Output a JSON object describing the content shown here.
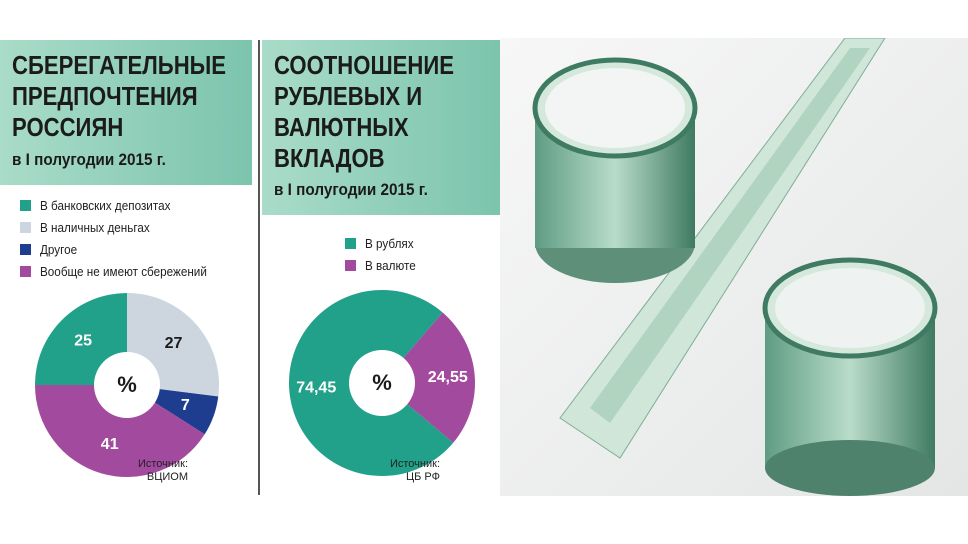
{
  "chart_data": [
    {
      "type": "pie",
      "title": "СБЕРЕГАТЕЛЬНЫЕ ПРЕДПОЧТЕНИЯ РОССИЯН",
      "subtitle": "в I полугодии 2015 г.",
      "center_label": "%",
      "source": "Источник: ВЦИОМ",
      "categories": [
        "В банковских депозитах",
        "В наличных деньгах",
        "Другое",
        "Вообще не имеют сбережений"
      ],
      "values": [
        25,
        27,
        7,
        41
      ],
      "colors": [
        "#21a08a",
        "#cdd6de",
        "#1f3d8f",
        "#a24b9e"
      ]
    },
    {
      "type": "pie",
      "title": "СООТНОШЕНИЕ РУБЛЕВЫХ И ВАЛЮТНЫХ ВКЛАДОВ",
      "subtitle": "в I полугодии 2015 г.",
      "center_label": "%",
      "source": "Источник: ЦБ РФ",
      "categories": [
        "В рублях",
        "В валюте"
      ],
      "values": [
        74.45,
        24.55
      ],
      "value_labels": [
        "74,45",
        "24,55"
      ],
      "colors": [
        "#21a08a",
        "#a24b9e"
      ]
    }
  ]
}
